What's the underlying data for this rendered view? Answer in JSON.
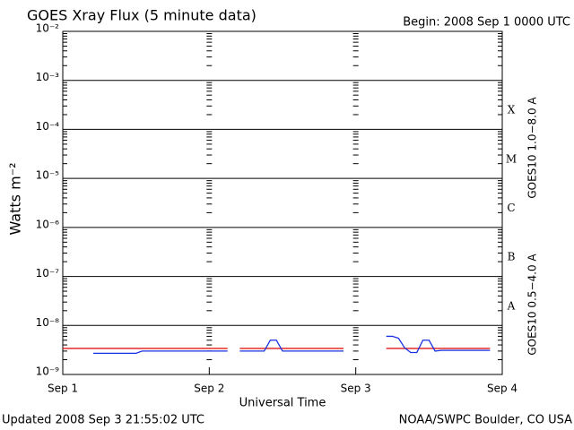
{
  "chart_data": {
    "type": "line",
    "title": "GOES Xray Flux (5 minute data)",
    "subtitle": "Begin:  2008 Sep 1 0000 UTC",
    "xlabel": "Universal Time",
    "ylabel": "Watts m⁻²",
    "footer_left": "Updated 2008 Sep  3 21:55:02 UTC",
    "footer_right": "NOAA/SWPC Boulder, CO USA",
    "flare_classes": [
      "X",
      "M",
      "C",
      "B",
      "A"
    ],
    "ylog": true,
    "grid": true,
    "ylim": [
      1e-09,
      0.01
    ],
    "yticks": [
      {
        "value": 1e-09,
        "label": "10⁻⁹"
      },
      {
        "value": 1e-08,
        "label": "10⁻⁸"
      },
      {
        "value": 1e-07,
        "label": "10⁻⁷"
      },
      {
        "value": 1e-06,
        "label": "10⁻⁶"
      },
      {
        "value": 1e-05,
        "label": "10⁻⁵"
      },
      {
        "value": 0.0001,
        "label": "10⁻⁴"
      },
      {
        "value": 0.001,
        "label": "10⁻³"
      },
      {
        "value": 0.01,
        "label": "10⁻²"
      }
    ],
    "xlim": [
      0,
      72
    ],
    "xticks": [
      {
        "value": 0,
        "label": "Sep 1"
      },
      {
        "value": 24,
        "label": "Sep 2"
      },
      {
        "value": 48,
        "label": "Sep 3"
      },
      {
        "value": 72,
        "label": "Sep 4"
      }
    ],
    "x": [
      0,
      1,
      2,
      3,
      4,
      5,
      6,
      7,
      8,
      9,
      10,
      11,
      12,
      13,
      14,
      15,
      16,
      17,
      18,
      19,
      20,
      21,
      22,
      23,
      24,
      25,
      26,
      27,
      28,
      29,
      30,
      31,
      32,
      33,
      34,
      35,
      36,
      37,
      38,
      39,
      40,
      41,
      42,
      43,
      44,
      45,
      46,
      47,
      48,
      49,
      50,
      51,
      52,
      53,
      54,
      55,
      56,
      57,
      58,
      59,
      60,
      61,
      62,
      63,
      64,
      65,
      66,
      67,
      68,
      69,
      70,
      71,
      72
    ],
    "series": [
      {
        "name": "GOES10 1.0−8.0 A",
        "color": "#e01818",
        "values": [
          3.4e-09,
          3.4e-09,
          3.4e-09,
          3.4e-09,
          3.4e-09,
          3.4e-09,
          3.4e-09,
          3.4e-09,
          3.4e-09,
          3.4e-09,
          3.4e-09,
          3.4e-09,
          3.4e-09,
          3.4e-09,
          3.4e-09,
          3.4e-09,
          3.4e-09,
          3.4e-09,
          3.4e-09,
          3.4e-09,
          3.4e-09,
          3.4e-09,
          3.4e-09,
          3.4e-09,
          3.4e-09,
          3.4e-09,
          3.4e-09,
          3.4e-09,
          null,
          3.4e-09,
          3.4e-09,
          3.4e-09,
          3.4e-09,
          3.4e-09,
          3.4e-09,
          3.4e-09,
          3.4e-09,
          3.4e-09,
          3.4e-09,
          3.4e-09,
          3.4e-09,
          3.4e-09,
          3.4e-09,
          3.4e-09,
          3.4e-09,
          3.4e-09,
          3.4e-09,
          null,
          null,
          null,
          null,
          null,
          null,
          3.4e-09,
          3.4e-09,
          3.4e-09,
          3.4e-09,
          3.4e-09,
          3.4e-09,
          3.4e-09,
          3.4e-09,
          3.4e-09,
          3.4e-09,
          3.4e-09,
          3.4e-09,
          3.4e-09,
          3.4e-09,
          3.4e-09,
          3.4e-09,
          3.4e-09,
          3.4e-09,
          null,
          null
        ]
      },
      {
        "name": "GOES10 0.5−4.0 A",
        "color": "#1830e0",
        "values": [
          null,
          null,
          null,
          null,
          null,
          2.7e-09,
          2.7e-09,
          2.7e-09,
          2.7e-09,
          2.7e-09,
          2.7e-09,
          2.7e-09,
          2.7e-09,
          3e-09,
          3e-09,
          3e-09,
          3e-09,
          3e-09,
          3e-09,
          3e-09,
          3e-09,
          3e-09,
          3e-09,
          3e-09,
          3e-09,
          3e-09,
          3e-09,
          3e-09,
          null,
          3e-09,
          3e-09,
          3e-09,
          3e-09,
          3e-09,
          5e-09,
          5e-09,
          3e-09,
          3e-09,
          3e-09,
          3e-09,
          3e-09,
          3e-09,
          3e-09,
          3e-09,
          3e-09,
          3e-09,
          3e-09,
          null,
          null,
          null,
          null,
          null,
          null,
          6e-09,
          6e-09,
          5.5e-09,
          3.5e-09,
          2.8e-09,
          2.8e-09,
          5e-09,
          5e-09,
          3e-09,
          3.1e-09,
          3.1e-09,
          3.1e-09,
          3.1e-09,
          3.1e-09,
          3.1e-09,
          3.1e-09,
          3.1e-09,
          3.1e-09,
          null,
          null
        ]
      }
    ]
  }
}
